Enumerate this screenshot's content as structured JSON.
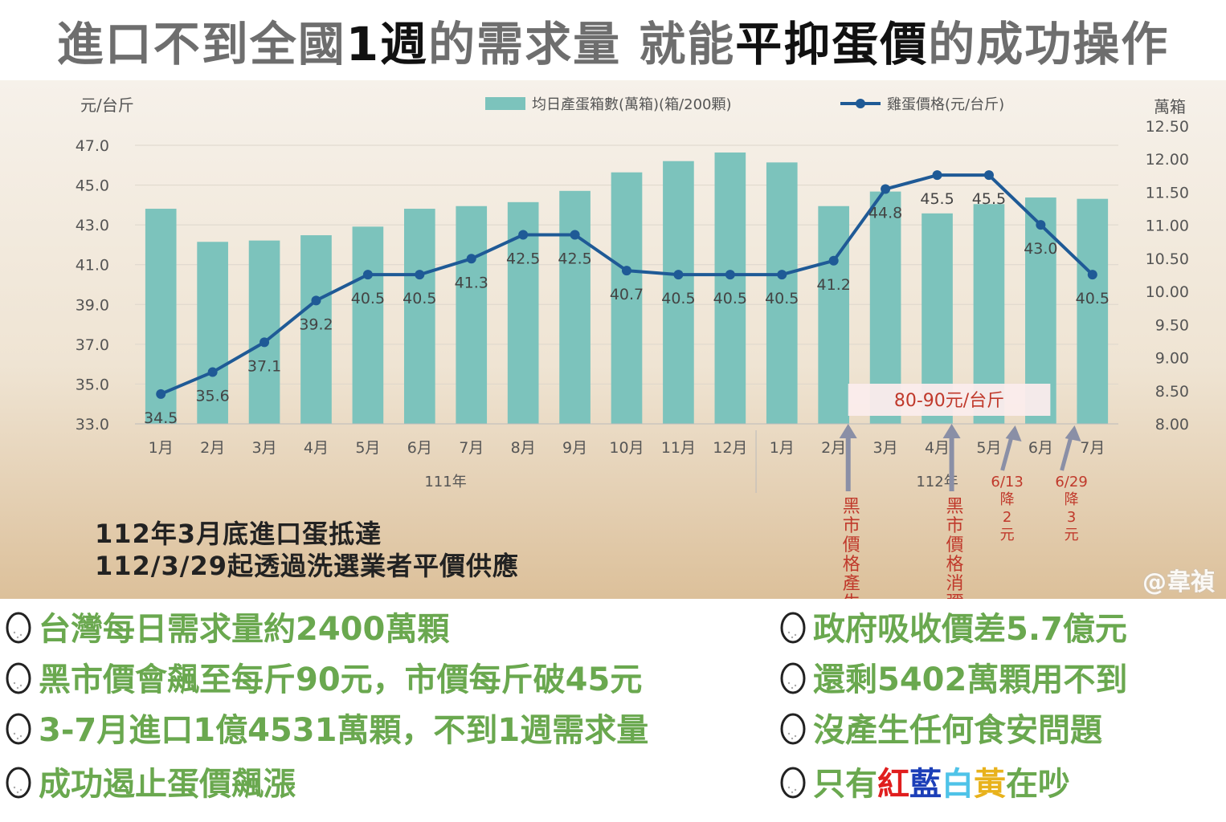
{
  "headline": {
    "part1": "進口不到全國",
    "part2": "1週",
    "part3": "的需求量 就能",
    "part4": "平抑蛋價",
    "part5": "的成功操作"
  },
  "chart_data": {
    "type": "bar+line",
    "categories": [
      "1月",
      "2月",
      "3月",
      "4月",
      "5月",
      "6月",
      "7月",
      "8月",
      "9月",
      "10月",
      "11月",
      "12月",
      "1月",
      "2月",
      "3月",
      "4月",
      "5月",
      "6月",
      "7月"
    ],
    "year_groups": [
      {
        "label": "111年",
        "count": 12
      },
      {
        "label": "112年",
        "count": 7
      }
    ],
    "series": [
      {
        "name": "均日產蛋箱數(萬箱)(箱/200顆)",
        "type": "bar",
        "axis": "right",
        "color": "#7cc3bc",
        "values": [
          11.25,
          10.75,
          10.77,
          10.85,
          10.98,
          11.25,
          11.29,
          11.35,
          11.52,
          11.8,
          11.97,
          12.1,
          11.95,
          11.29,
          11.51,
          11.18,
          11.32,
          11.42,
          11.4
        ]
      },
      {
        "name": "雞蛋價格(元/台斤)",
        "type": "line",
        "axis": "left",
        "color": "#1f5a96",
        "values": [
          34.5,
          35.6,
          37.1,
          39.2,
          40.5,
          40.5,
          41.3,
          42.5,
          42.5,
          40.7,
          40.5,
          40.5,
          40.5,
          41.2,
          44.8,
          45.5,
          45.5,
          43.0,
          40.5
        ],
        "labels": [
          "34.5",
          "35.6",
          "37.1",
          "39.2",
          "40.5",
          "40.5",
          "41.3",
          "42.5",
          "42.5",
          "40.7",
          "40.5",
          "40.5",
          "40.5",
          "41.2",
          "44.8",
          "45.5",
          "45.5",
          "43.0",
          "40.5"
        ]
      }
    ],
    "ylabel_left": "元/台斤",
    "ylabel_right": "萬箱",
    "ylim_left": [
      33.0,
      47.0
    ],
    "yticks_left": [
      "33.0",
      "35.0",
      "37.0",
      "39.0",
      "41.0",
      "43.0",
      "45.0",
      "47.0"
    ],
    "ylim_right": [
      8.0,
      12.5
    ],
    "yticks_right": [
      "8.00",
      "8.50",
      "9.00",
      "9.50",
      "10.00",
      "10.50",
      "11.00",
      "11.50",
      "12.00",
      "12.50"
    ],
    "legend_position": "top",
    "callout_box": "80-90元/台斤",
    "annotations": [
      {
        "category_index": 13,
        "text": "黑市價格產生"
      },
      {
        "category_index": 15,
        "text": "黑市價格消彌"
      },
      {
        "category_index": 16.6,
        "text": "6/13降2元"
      },
      {
        "category_index": 17.5,
        "text": "6/29降3元"
      }
    ]
  },
  "notes": {
    "line1": "112年3月底進口蛋抵達",
    "line2": "112/3/29起透過洗選業者平價供應"
  },
  "watermark": "@韋禎",
  "bullets_left": [
    "台灣每日需求量約2400萬顆",
    "黑市價會飆至每斤90元，市價每斤破45元",
    "3-7月進口1億4531萬顆，不到1週需求量",
    "成功遏止蛋價飆漲"
  ],
  "bullets_right": [
    "政府吸收價差5.7億元",
    "還剩5402萬顆用不到",
    "沒產生任何食安問題"
  ],
  "last_bullet": {
    "a": "只有",
    "red": "紅",
    "blue": "藍",
    "white": "白",
    "yellow": "黃",
    "b": "在吵"
  },
  "colors": {
    "bar": "#7cc3bc",
    "line": "#1f5a96",
    "annotation": "#c0392b",
    "arrow": "#8a8fa6",
    "bullet_text": "#6aa84f"
  }
}
